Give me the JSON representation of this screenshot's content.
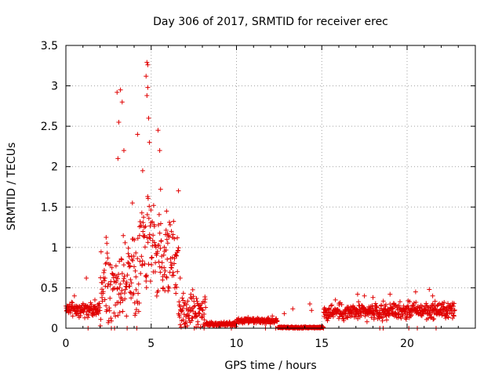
{
  "chart_data": {
    "type": "scatter",
    "title": "Day 306 of 2017, SRMTID for receiver erec",
    "xlabel": "GPS time / hours",
    "ylabel": "SRMTID / TECUs",
    "xlim": [
      0,
      24
    ],
    "ylim": [
      0,
      3.5
    ],
    "x_ticks": [
      0,
      5,
      10,
      15,
      20
    ],
    "x_tick_labels": [
      "0",
      "5",
      "10",
      "15",
      "20"
    ],
    "y_ticks": [
      0,
      0.5,
      1,
      1.5,
      2,
      2.5,
      3,
      3.5
    ],
    "y_tick_labels": [
      "0",
      "0.5",
      "1",
      "1.5",
      "2",
      "2.5",
      "3",
      "3.5"
    ],
    "grid": true,
    "marker": "+",
    "series_color": "#e00000",
    "segments": [
      {
        "start": 0.0,
        "end": 2.0,
        "base": 0.24,
        "spread": 0.09,
        "spikes": [
          [
            1.2,
            0.62
          ],
          [
            0.5,
            0.4
          ],
          [
            1.7,
            0.35
          ]
        ]
      },
      {
        "start": 2.0,
        "end": 4.3,
        "base": 0.55,
        "spread": 0.5,
        "spikes": [
          [
            3.0,
            2.92
          ],
          [
            3.2,
            2.95
          ],
          [
            3.1,
            2.55
          ],
          [
            3.3,
            2.8
          ],
          [
            3.4,
            2.2
          ],
          [
            3.05,
            2.1
          ],
          [
            3.9,
            1.55
          ],
          [
            2.4,
            1.05
          ]
        ]
      },
      {
        "start": 4.3,
        "end": 5.2,
        "base": 1.05,
        "spread": 0.55,
        "spikes": [
          [
            4.75,
            3.29
          ],
          [
            4.8,
            3.26
          ],
          [
            4.7,
            3.12
          ],
          [
            4.8,
            2.98
          ],
          [
            4.75,
            2.88
          ],
          [
            4.85,
            2.6
          ],
          [
            4.9,
            2.3
          ],
          [
            4.5,
            1.95
          ],
          [
            4.2,
            2.4
          ]
        ]
      },
      {
        "start": 5.2,
        "end": 6.6,
        "base": 0.85,
        "spread": 0.42,
        "spikes": [
          [
            5.4,
            2.45
          ],
          [
            5.5,
            2.2
          ],
          [
            5.55,
            1.72
          ],
          [
            6.6,
            1.7
          ],
          [
            5.9,
            1.45
          ]
        ]
      },
      {
        "start": 6.6,
        "end": 8.2,
        "base": 0.22,
        "spread": 0.2,
        "spikes": [
          [
            6.7,
            0.62
          ]
        ]
      },
      {
        "start": 8.2,
        "end": 10.0,
        "base": 0.05,
        "spread": 0.025,
        "spikes": []
      },
      {
        "start": 10.0,
        "end": 12.4,
        "base": 0.09,
        "spread": 0.03,
        "spikes": [
          [
            12.1,
            0.15
          ]
        ]
      },
      {
        "start": 12.4,
        "end": 15.1,
        "base": 0.01,
        "spread": 0.008,
        "spikes": [
          [
            12.8,
            0.18
          ],
          [
            13.3,
            0.24
          ],
          [
            14.3,
            0.3
          ],
          [
            14.4,
            0.22
          ]
        ]
      },
      {
        "start": 15.1,
        "end": 18.6,
        "base": 0.2,
        "spread": 0.09,
        "spikes": [
          [
            15.8,
            0.35
          ],
          [
            17.1,
            0.42
          ],
          [
            17.5,
            0.4
          ],
          [
            18.0,
            0.38
          ]
        ]
      },
      {
        "start": 18.6,
        "end": 22.8,
        "base": 0.22,
        "spread": 0.09,
        "spikes": [
          [
            19.0,
            0.42
          ],
          [
            20.5,
            0.45
          ],
          [
            21.3,
            0.48
          ],
          [
            21.5,
            0.4
          ],
          [
            22.6,
            0.24
          ]
        ]
      }
    ],
    "zero_points": [
      1.3,
      8.1,
      9.7,
      11.7,
      12.3,
      13.3,
      13.6,
      13.9,
      14.2,
      14.6,
      14.9,
      15.1,
      18.4,
      18.6,
      20.1,
      20.6,
      21.7
    ]
  }
}
